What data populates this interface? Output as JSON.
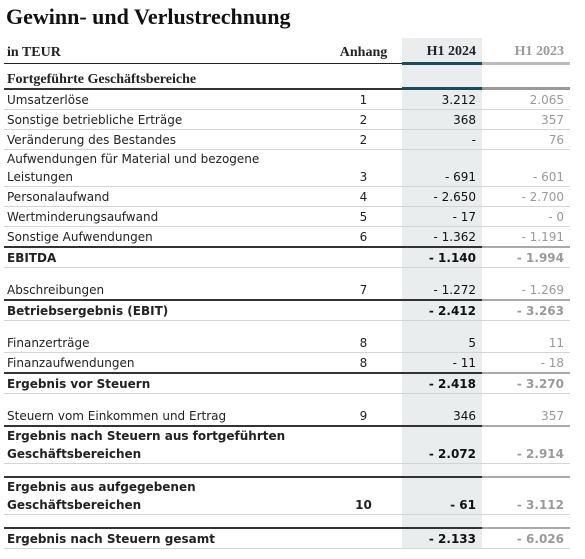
{
  "header": {
    "title": "Gewinn- und Verlustrechnung"
  },
  "table": {
    "columns": [
      "in TEUR",
      "Anhang",
      "H1 2024",
      "H1 2023"
    ],
    "section": "Fortgeführte Geschäftsbereiche",
    "rows": [
      {
        "label": "Umsatzerlöse",
        "note": "1",
        "current": "3.212",
        "previous": "2.065",
        "bold": false
      },
      {
        "label": "Sonstige betriebliche Erträge",
        "note": "2",
        "current": "368",
        "previous": "357",
        "bold": false
      },
      {
        "label": "Veränderung des Bestandes",
        "note": "2",
        "current": "-",
        "previous": "76",
        "bold": false
      },
      {
        "label": "Aufwendungen für Material und bezogene\nLeistungen",
        "note": "3",
        "current": "- 691",
        "previous": "- 601",
        "bold": false
      },
      {
        "label": "Personalaufwand",
        "note": "4",
        "current": "- 2.650",
        "previous": "- 2.700",
        "bold": false
      },
      {
        "label": "Wertminderungsaufwand",
        "note": "5",
        "current": "- 17",
        "previous": "- 0",
        "bold": false
      },
      {
        "label": "Sonstige Aufwendungen",
        "note": "6",
        "current": "- 1.362",
        "previous": "- 1.191",
        "bold": false
      },
      {
        "label": "EBITDA",
        "note": null,
        "current": "- 1.140",
        "previous": "- 1.994",
        "bold": true
      },
      {
        "label": "Abschreibungen",
        "note": "7",
        "current": "- 1.272",
        "previous": "- 1.269",
        "bold": false
      },
      {
        "label": "Betriebsergebnis (EBIT)",
        "note": null,
        "current": "- 2.412",
        "previous": "- 3.263",
        "bold": true
      },
      {
        "label": "Finanzerträge",
        "note": "8",
        "current": "5",
        "previous": "11",
        "bold": false
      },
      {
        "label": "Finanzaufwendungen",
        "note": "8",
        "current": "- 11",
        "previous": "- 18",
        "bold": false
      },
      {
        "label": "Ergebnis vor Steuern",
        "note": null,
        "current": "- 2.418",
        "previous": "- 3.270",
        "bold": true
      },
      {
        "label": "Steuern vom Einkommen und Ertrag",
        "note": "9",
        "current": "346",
        "previous": "357",
        "bold": false
      },
      {
        "label": "Ergebnis nach Steuern aus fortgeführten\nGeschäftsbereichen",
        "note": null,
        "current": "- 2.072",
        "previous": "- 2.914",
        "bold": true
      },
      {
        "label": "Ergebnis aus aufgegebenen\nGeschäftsbereichen",
        "note": "10",
        "current": "- 61",
        "previous": "- 3.112",
        "bold": true
      },
      {
        "label": "Ergebnis nach Steuern gesamt",
        "note": null,
        "current": "- 2.133",
        "previous": "- 6.026",
        "bold": true
      }
    ]
  }
}
